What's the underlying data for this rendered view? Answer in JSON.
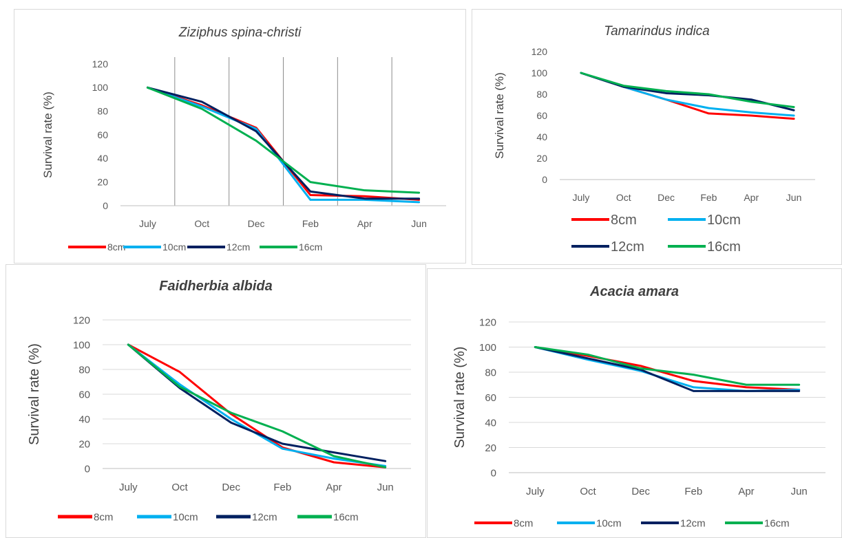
{
  "legend_labels": [
    "8cm",
    "10cm",
    "12cm",
    "16cm"
  ],
  "series_colors": [
    "#ff0000",
    "#00b0f0",
    "#002060",
    "#00b050"
  ],
  "chart_data": [
    {
      "type": "line",
      "title": "Ziziphus spina-christi",
      "ylabel": "Survival rate (%)",
      "xlabel": "",
      "categories": [
        "July",
        "Oct",
        "Dec",
        "Feb",
        "Apr",
        "Jun"
      ],
      "ylim": [
        0,
        120
      ],
      "yticks": [
        0,
        20,
        40,
        60,
        80,
        100,
        120
      ],
      "grid": "vertical",
      "legend_position": "bottom",
      "series": [
        {
          "name": "8cm",
          "color": "#ff0000",
          "values": [
            100,
            85,
            66,
            9,
            8,
            5
          ]
        },
        {
          "name": "10cm",
          "color": "#00b0f0",
          "values": [
            100,
            84,
            65,
            5,
            5,
            3
          ]
        },
        {
          "name": "12cm",
          "color": "#002060",
          "values": [
            100,
            88,
            63,
            12,
            6,
            6
          ]
        },
        {
          "name": "16cm",
          "color": "#00b050",
          "values": [
            100,
            82,
            55,
            20,
            13,
            11
          ]
        }
      ]
    },
    {
      "type": "line",
      "title": "Tamarindus indica",
      "ylabel": "Survival rate (%)",
      "xlabel": "",
      "categories": [
        "July",
        "Oct",
        "Dec",
        "Feb",
        "Apr",
        "Jun"
      ],
      "ylim": [
        0,
        120
      ],
      "yticks": [
        0,
        20,
        40,
        60,
        80,
        100,
        120
      ],
      "grid": "none",
      "legend_position": "bottom",
      "series": [
        {
          "name": "8cm",
          "color": "#ff0000",
          "values": [
            100,
            87,
            75,
            62,
            60,
            57
          ]
        },
        {
          "name": "10cm",
          "color": "#00b0f0",
          "values": [
            100,
            87,
            75,
            67,
            63,
            60
          ]
        },
        {
          "name": "12cm",
          "color": "#002060",
          "values": [
            100,
            87,
            81,
            79,
            75,
            65
          ]
        },
        {
          "name": "16cm",
          "color": "#00b050",
          "values": [
            100,
            88,
            83,
            80,
            73,
            68
          ]
        }
      ]
    },
    {
      "type": "line",
      "title": "Faidherbia albida",
      "ylabel": "Survival rate (%)",
      "xlabel": "",
      "categories": [
        "July",
        "Oct",
        "Dec",
        "Feb",
        "Apr",
        "Jun"
      ],
      "ylim": [
        0,
        120
      ],
      "yticks": [
        0,
        20,
        40,
        60,
        80,
        100,
        120
      ],
      "grid": "horizontal",
      "legend_position": "bottom",
      "series": [
        {
          "name": "8cm",
          "color": "#ff0000",
          "values": [
            100,
            78,
            44,
            17,
            5,
            1
          ]
        },
        {
          "name": "10cm",
          "color": "#00b0f0",
          "values": [
            100,
            68,
            40,
            16,
            8,
            2
          ]
        },
        {
          "name": "12cm",
          "color": "#002060",
          "values": [
            100,
            65,
            37,
            20,
            13,
            6
          ]
        },
        {
          "name": "16cm",
          "color": "#00b050",
          "values": [
            100,
            66,
            45,
            30,
            10,
            1
          ]
        }
      ]
    },
    {
      "type": "line",
      "title": "Acacia amara",
      "ylabel": "Survival rate (%)",
      "xlabel": "",
      "categories": [
        "July",
        "Oct",
        "Dec",
        "Feb",
        "Apr",
        "Jun"
      ],
      "ylim": [
        0,
        120
      ],
      "yticks": [
        0,
        20,
        40,
        60,
        80,
        100,
        120
      ],
      "grid": "horizontal",
      "legend_position": "bottom",
      "series": [
        {
          "name": "8cm",
          "color": "#ff0000",
          "values": [
            100,
            93,
            85,
            73,
            68,
            66
          ]
        },
        {
          "name": "10cm",
          "color": "#00b0f0",
          "values": [
            100,
            90,
            81,
            68,
            65,
            66
          ]
        },
        {
          "name": "12cm",
          "color": "#002060",
          "values": [
            100,
            91,
            82,
            65,
            65,
            65
          ]
        },
        {
          "name": "16cm",
          "color": "#00b050",
          "values": [
            100,
            94,
            83,
            78,
            70,
            70
          ]
        }
      ]
    }
  ]
}
